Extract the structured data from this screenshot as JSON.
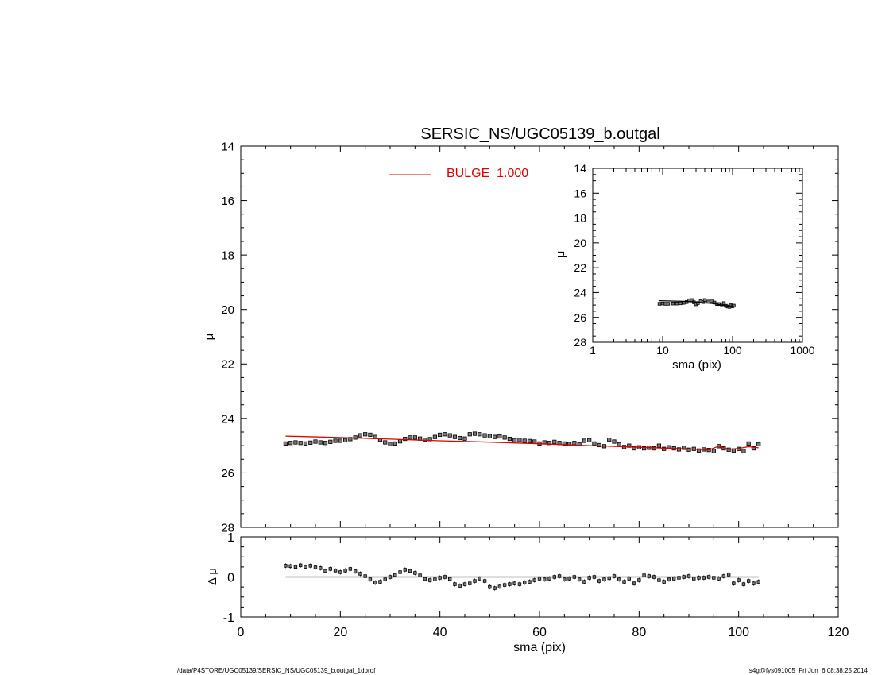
{
  "title": "SERSIC_NS/UGC05139_b.outgal",
  "footer_left": "/data/P4STORE/UGC05139/SERSIC_NS/UGC05139_b.outgal_1dprof",
  "footer_right": "s4g@fys091005  Fri Jun  6 08:38:25 2014",
  "colors": {
    "model": "#dd0000",
    "data": "#000000",
    "marker": "#7a7a7a"
  },
  "chart_data": [
    {
      "type": "scatter",
      "panel": "main",
      "xlabel": "",
      "ylabel": "μ",
      "xlim": [
        0,
        120
      ],
      "ylim": [
        28,
        14
      ],
      "x_ticks": [
        0,
        20,
        40,
        60,
        80,
        100,
        120
      ],
      "y_ticks": [
        14,
        16,
        18,
        20,
        22,
        24,
        26,
        28
      ],
      "grid": false,
      "legend": {
        "position": "top-center",
        "entries": [
          {
            "label": "BULGE  1.000",
            "color": "#dd0000"
          }
        ]
      },
      "series": [
        {
          "kind": "points",
          "x": [
            9,
            10,
            11,
            12,
            13,
            14,
            15,
            16,
            17,
            18,
            19,
            20,
            21,
            22,
            23,
            24,
            25,
            26,
            27,
            28,
            29,
            30,
            31,
            32,
            33,
            34,
            35,
            36,
            37,
            38,
            39,
            40,
            41,
            42,
            43,
            44,
            45,
            46,
            47,
            48,
            49,
            50,
            51,
            52,
            53,
            54,
            55,
            56,
            57,
            58,
            59,
            60,
            61,
            62,
            63,
            64,
            65,
            66,
            67,
            68,
            69,
            70,
            71,
            72,
            73,
            74,
            75,
            76,
            77,
            78,
            79,
            80,
            81,
            82,
            83,
            84,
            85,
            86,
            87,
            88,
            89,
            90,
            91,
            92,
            93,
            94,
            95,
            96,
            97,
            98,
            99,
            100,
            101,
            102,
            103,
            104
          ],
          "y": [
            24.92,
            24.9,
            24.88,
            24.9,
            24.92,
            24.89,
            24.85,
            24.88,
            24.9,
            24.86,
            24.82,
            24.82,
            24.8,
            24.76,
            24.7,
            24.62,
            24.58,
            24.6,
            24.68,
            24.78,
            24.88,
            24.94,
            24.92,
            24.84,
            24.75,
            24.7,
            24.7,
            24.74,
            24.78,
            24.76,
            24.68,
            24.6,
            24.58,
            24.62,
            24.68,
            24.72,
            24.74,
            24.58,
            24.56,
            24.58,
            24.62,
            24.65,
            24.68,
            24.66,
            24.7,
            24.75,
            24.8,
            24.79,
            24.82,
            24.83,
            24.85,
            24.92,
            24.88,
            24.9,
            24.86,
            24.9,
            24.92,
            24.94,
            24.9,
            24.95,
            24.82,
            24.8,
            24.92,
            24.98,
            25.02,
            24.78,
            24.85,
            24.95,
            25.05,
            25.0,
            25.1,
            25.06,
            25.1,
            25.08,
            25.1,
            25.0,
            25.12,
            25.06,
            25.1,
            25.14,
            25.08,
            25.15,
            25.12,
            25.18,
            25.14,
            25.16,
            25.2,
            25.02,
            25.1,
            25.15,
            25.18,
            25.12,
            25.2,
            24.92,
            25.1,
            24.95
          ]
        },
        {
          "kind": "model",
          "name": "BULGE",
          "x": [
            9,
            20,
            30,
            40,
            50,
            60,
            70,
            80,
            90,
            94,
            96,
            98,
            100,
            102,
            104
          ],
          "y": [
            24.65,
            24.7,
            24.76,
            24.82,
            24.87,
            24.93,
            25.0,
            25.06,
            25.12,
            25.16,
            25.02,
            25.14,
            25.1,
            25.04,
            25.08
          ]
        }
      ]
    },
    {
      "type": "scatter",
      "panel": "inset",
      "xlabel": "sma (pix)",
      "ylabel": "μ",
      "xscale": "log",
      "xlim": [
        1,
        1000
      ],
      "ylim": [
        28,
        14
      ],
      "x_ticks": [
        "1",
        "10",
        "100",
        "1000"
      ],
      "y_ticks": [
        14,
        16,
        18,
        20,
        22,
        24,
        26,
        28
      ],
      "grid": false,
      "series": [
        {
          "kind": "points",
          "x": [
            9,
            10,
            11,
            12,
            14,
            16,
            18,
            20,
            22,
            24,
            26,
            28,
            30,
            32,
            35,
            38,
            40,
            45,
            50,
            55,
            60,
            65,
            70,
            75,
            80,
            85,
            90,
            95,
            100,
            104
          ],
          "y": [
            24.9,
            24.88,
            24.9,
            24.9,
            24.88,
            24.88,
            24.86,
            24.82,
            24.76,
            24.62,
            24.6,
            24.78,
            24.94,
            24.84,
            24.7,
            24.76,
            24.6,
            24.72,
            24.65,
            24.8,
            24.92,
            24.92,
            24.95,
            24.85,
            25.06,
            25.12,
            25.15,
            25.02,
            25.1,
            25.05
          ]
        },
        {
          "kind": "model",
          "name": "BULGE",
          "x": [
            9,
            15,
            20,
            30,
            40,
            50,
            60,
            70,
            80,
            90,
            100,
            104
          ],
          "y": [
            24.65,
            24.68,
            24.7,
            24.76,
            24.82,
            24.87,
            24.93,
            25.0,
            25.06,
            25.12,
            25.1,
            25.08
          ]
        }
      ]
    },
    {
      "type": "scatter",
      "panel": "residual",
      "xlabel": "sma (pix)",
      "ylabel": "Δ μ",
      "xlim": [
        0,
        120
      ],
      "ylim": [
        -1,
        1
      ],
      "x_ticks": [
        0,
        20,
        40,
        60,
        80,
        100,
        120
      ],
      "y_ticks": [
        -1,
        0,
        1
      ],
      "grid": false,
      "series": [
        {
          "kind": "points",
          "x": [
            9,
            10,
            11,
            12,
            13,
            14,
            15,
            16,
            17,
            18,
            19,
            20,
            21,
            22,
            23,
            24,
            25,
            26,
            27,
            28,
            29,
            30,
            31,
            32,
            33,
            34,
            35,
            36,
            37,
            38,
            39,
            40,
            41,
            42,
            43,
            44,
            45,
            46,
            47,
            48,
            49,
            50,
            51,
            52,
            53,
            54,
            55,
            56,
            57,
            58,
            59,
            60,
            61,
            62,
            63,
            64,
            65,
            66,
            67,
            68,
            69,
            70,
            71,
            72,
            73,
            74,
            75,
            76,
            77,
            78,
            79,
            80,
            81,
            82,
            83,
            84,
            85,
            86,
            87,
            88,
            89,
            90,
            91,
            92,
            93,
            94,
            95,
            96,
            97,
            98,
            99,
            100,
            101,
            102,
            103,
            104
          ],
          "y": [
            0.28,
            0.27,
            0.25,
            0.29,
            0.25,
            0.28,
            0.24,
            0.22,
            0.15,
            0.2,
            0.16,
            0.12,
            0.16,
            0.2,
            0.14,
            0.08,
            0.02,
            -0.06,
            -0.14,
            -0.12,
            -0.06,
            0.0,
            0.05,
            0.12,
            0.18,
            0.15,
            0.1,
            0.04,
            -0.05,
            -0.08,
            -0.06,
            -0.02,
            0.0,
            -0.05,
            -0.18,
            -0.22,
            -0.18,
            -0.16,
            -0.1,
            -0.04,
            -0.1,
            -0.25,
            -0.28,
            -0.24,
            -0.2,
            -0.18,
            -0.16,
            -0.18,
            -0.14,
            -0.12,
            -0.08,
            -0.04,
            -0.06,
            -0.04,
            0.0,
            0.02,
            -0.06,
            -0.04,
            0.0,
            -0.06,
            -0.12,
            -0.02,
            0.0,
            -0.1,
            -0.06,
            -0.03,
            0.02,
            -0.06,
            -0.12,
            -0.04,
            -0.16,
            -0.08,
            0.04,
            0.02,
            0.0,
            -0.08,
            -0.12,
            -0.06,
            -0.04,
            -0.02,
            0.0,
            0.02,
            -0.04,
            -0.02,
            -0.02,
            0.0,
            -0.02,
            -0.04,
            0.02,
            0.06,
            -0.16,
            -0.08,
            -0.18,
            -0.1,
            -0.16,
            -0.12
          ]
        },
        {
          "kind": "zero-line",
          "x": [
            9,
            104
          ],
          "y": [
            0,
            0
          ]
        }
      ]
    }
  ]
}
